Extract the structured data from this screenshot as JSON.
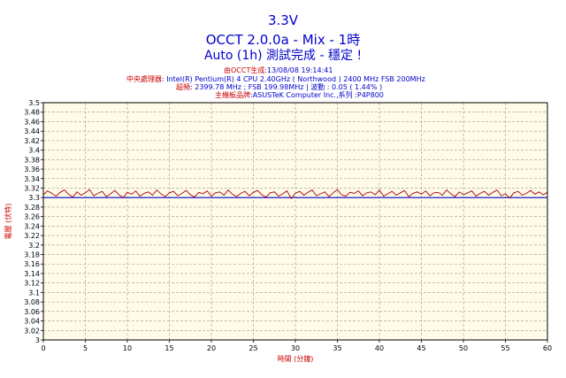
{
  "header": {
    "title": "3.3V",
    "subtitle": "OCCT 2.0.0a - Mix - 1時",
    "status": "Auto (1h) 測試完成 - 穩定 !"
  },
  "info": {
    "generated_label": "由OCCT生成",
    "generated_value": ":13/08/08 19:14:41",
    "cpu_label": "中央處理器",
    "cpu_value": ": Intel(R) Pentium(R) 4 CPU 2.40GHz ( Northwood ) 2400 MHz FSB 200MHz",
    "oc_label": "超頻",
    "oc_value": ": 2399.78 MHz ; FSB 199.98MHz | 波動 : 0.05 ( 1.44% )",
    "mb_label": "主機板品牌",
    "mb_value": ":ASUSTeK Computer Inc.,系列 :P4P800"
  },
  "colors": {
    "title": "#0000cc",
    "label": "#cc0000",
    "plot_bg": "#fffbe8",
    "grid": "#999999",
    "series": "#aa0000",
    "reference": "#0000cc"
  },
  "chart_data": {
    "type": "line",
    "xlabel": "時間 (分鐘)",
    "ylabel": "電壓 (伏特)",
    "xlim": [
      0,
      60
    ],
    "ylim": [
      3.0,
      3.5
    ],
    "x_ticks": [
      "0",
      "5",
      "10",
      "15",
      "20",
      "25",
      "30",
      "35",
      "40",
      "45",
      "50",
      "55",
      "60"
    ],
    "y_ticks": [
      "3",
      "3.02",
      "3.04",
      "3.06",
      "3.08",
      "3.1",
      "3.12",
      "3.14",
      "3.16",
      "3.18",
      "3.2",
      "3.22",
      "3.24",
      "3.26",
      "3.28",
      "3.3",
      "3.32",
      "3.34",
      "3.36",
      "3.38",
      "3.4",
      "3.42",
      "3.44",
      "3.46",
      "3.48",
      "3.5"
    ],
    "grid": true,
    "reference_value": 3.3,
    "series": [
      {
        "x": [
          0,
          0.5,
          1,
          1.5,
          2,
          2.5,
          3,
          3.5,
          4,
          4.5,
          5,
          5.5,
          6,
          6.5,
          7,
          7.5,
          8,
          8.5,
          9,
          9.5,
          10,
          10.5,
          11,
          11.5,
          12,
          12.5,
          13,
          13.5,
          14,
          14.5,
          15,
          15.5,
          16,
          16.5,
          17,
          17.5,
          18,
          18.5,
          19,
          19.5,
          20,
          20.5,
          21,
          21.5,
          22,
          22.5,
          23,
          23.5,
          24,
          24.5,
          25,
          25.5,
          26,
          26.5,
          27,
          27.5,
          28,
          28.5,
          29,
          29.5,
          30,
          30.5,
          31,
          31.5,
          32,
          32.5,
          33,
          33.5,
          34,
          34.5,
          35,
          35.5,
          36,
          36.5,
          37,
          37.5,
          38,
          38.5,
          39,
          39.5,
          40,
          40.5,
          41,
          41.5,
          42,
          42.5,
          43,
          43.5,
          44,
          44.5,
          45,
          45.5,
          46,
          46.5,
          47,
          47.5,
          48,
          48.5,
          49,
          49.5,
          50,
          50.5,
          51,
          51.5,
          52,
          52.5,
          53,
          53.5,
          54,
          54.5,
          55,
          55.5,
          56,
          56.5,
          57,
          57.5,
          58,
          58.5,
          59,
          59.5,
          60
        ],
        "values": [
          3.306,
          3.314,
          3.309,
          3.303,
          3.311,
          3.316,
          3.307,
          3.301,
          3.312,
          3.305,
          3.31,
          3.317,
          3.304,
          3.309,
          3.313,
          3.302,
          3.308,
          3.315,
          3.306,
          3.3,
          3.311,
          3.307,
          3.314,
          3.303,
          3.309,
          3.312,
          3.305,
          3.316,
          3.308,
          3.302,
          3.31,
          3.313,
          3.304,
          3.309,
          3.315,
          3.306,
          3.301,
          3.311,
          3.308,
          3.314,
          3.303,
          3.31,
          3.312,
          3.305,
          3.316,
          3.307,
          3.302,
          3.309,
          3.313,
          3.304,
          3.311,
          3.315,
          3.306,
          3.301,
          3.31,
          3.312,
          3.303,
          3.308,
          3.314,
          3.298,
          3.309,
          3.313,
          3.305,
          3.311,
          3.316,
          3.304,
          3.308,
          3.312,
          3.302,
          3.31,
          3.317,
          3.306,
          3.303,
          3.311,
          3.309,
          3.314,
          3.304,
          3.31,
          3.312,
          3.306,
          3.316,
          3.303,
          3.308,
          3.313,
          3.305,
          3.31,
          3.315,
          3.302,
          3.309,
          3.312,
          3.307,
          3.314,
          3.304,
          3.31,
          3.311,
          3.305,
          3.316,
          3.308,
          3.302,
          3.312,
          3.306,
          3.31,
          3.314,
          3.303,
          3.309,
          3.313,
          3.305,
          3.311,
          3.316,
          3.304,
          3.308,
          3.299,
          3.31,
          3.313,
          3.305,
          3.309,
          3.315,
          3.307,
          3.312,
          3.306,
          3.311
        ]
      }
    ]
  }
}
